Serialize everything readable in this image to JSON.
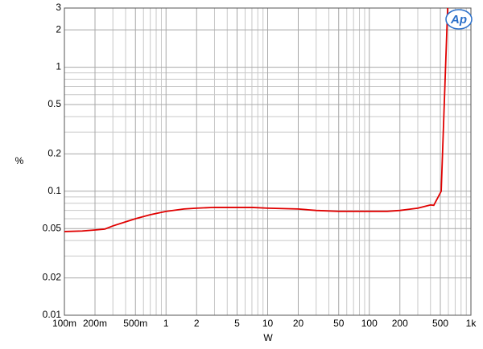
{
  "chart_data": {
    "type": "line",
    "xlabel": "W",
    "ylabel": "%",
    "annotations": [
      "Ap"
    ],
    "xscale": "log",
    "yscale": "log",
    "grid": true,
    "xlim": [
      0.1,
      1000
    ],
    "ylim": [
      0.01,
      3
    ],
    "xticks": [
      {
        "value": 0.1,
        "label": "100m"
      },
      {
        "value": 0.2,
        "label": "200m"
      },
      {
        "value": 0.5,
        "label": "500m"
      },
      1,
      2,
      5,
      10,
      20,
      50,
      100,
      200,
      500,
      {
        "value": 1000,
        "label": "1k"
      }
    ],
    "yticks": [
      0.01,
      0.02,
      0.05,
      0.1,
      0.2,
      0.5,
      1,
      2,
      3
    ],
    "xminorticks": [
      0.3,
      0.4,
      0.6,
      0.7,
      0.8,
      0.9,
      3,
      4,
      6,
      7,
      8,
      9,
      30,
      40,
      60,
      70,
      80,
      90,
      300,
      400,
      600,
      700,
      800,
      900
    ],
    "yminorticks": [
      0.03,
      0.04,
      0.06,
      0.07,
      0.08,
      0.09,
      0.3,
      0.4,
      0.6,
      0.7,
      0.8,
      0.9
    ],
    "x": [
      0.1,
      0.15,
      0.2,
      0.25,
      0.3,
      0.4,
      0.5,
      0.7,
      1,
      1.5,
      2,
      3,
      5,
      7,
      10,
      20,
      30,
      50,
      100,
      150,
      200,
      300,
      400,
      431,
      510,
      590
    ],
    "series": [
      {
        "color": "#e00000",
        "values": [
          0.0473,
          0.0478,
          0.0487,
          0.0495,
          0.0525,
          0.0566,
          0.06,
          0.0647,
          0.0688,
          0.0719,
          0.073,
          0.0741,
          0.074,
          0.074,
          0.073,
          0.0719,
          0.07,
          0.0688,
          0.0688,
          0.0688,
          0.07,
          0.073,
          0.0775,
          0.077,
          0.1,
          3
        ]
      }
    ]
  }
}
